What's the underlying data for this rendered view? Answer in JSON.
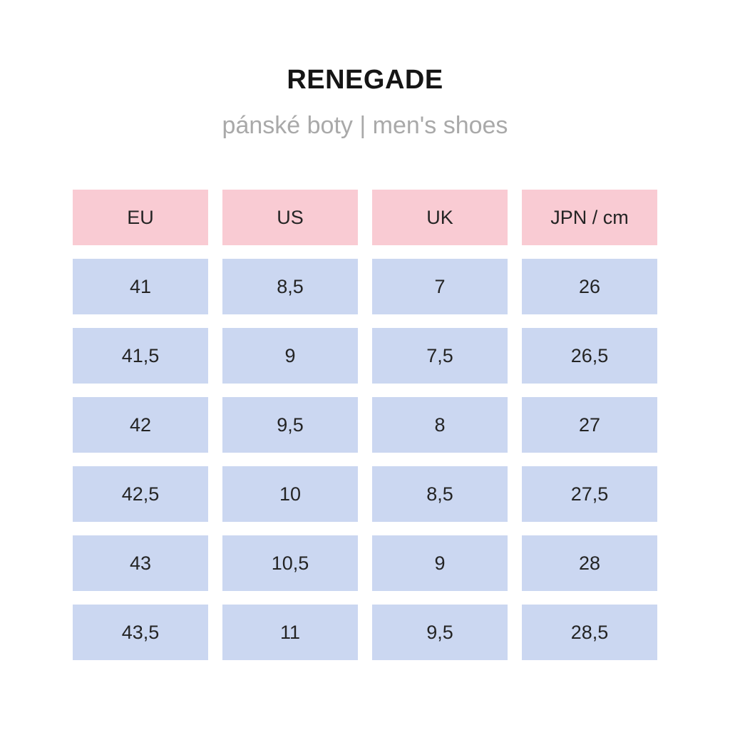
{
  "chart_data": {
    "type": "table",
    "title": "RENEGADE",
    "subtitle": "pánské boty | men's shoes",
    "columns": [
      "EU",
      "US",
      "UK",
      "JPN / cm"
    ],
    "rows": [
      [
        "41",
        "8,5",
        "7",
        "26"
      ],
      [
        "41,5",
        "9",
        "7,5",
        "26,5"
      ],
      [
        "42",
        "9,5",
        "8",
        "27"
      ],
      [
        "42,5",
        "10",
        "8,5",
        "27,5"
      ],
      [
        "43",
        "10,5",
        "9",
        "28"
      ],
      [
        "43,5",
        "11",
        "9,5",
        "28,5"
      ]
    ]
  },
  "colors": {
    "header_bg": "#f9cbd3",
    "cell_bg": "#cbd7f1",
    "title_text": "#151515",
    "subtitle_text": "#a9a9a9",
    "cell_text": "#242424",
    "background": "#ffffff"
  }
}
